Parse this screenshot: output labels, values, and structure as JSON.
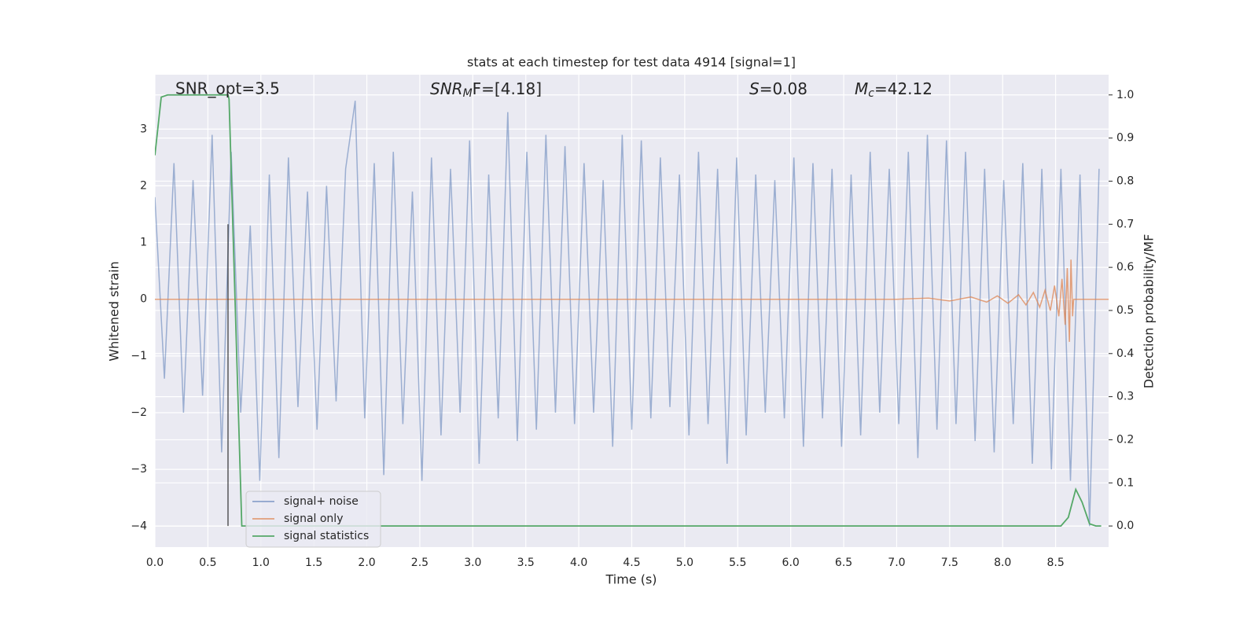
{
  "chart_data": {
    "type": "line",
    "title": "stats at each timestep for test data 4914 [signal=1]",
    "xlabel": "Time (s)",
    "ylabel": "Whitened strain",
    "y2label": "Detection probability/MF",
    "xlim": [
      0,
      9
    ],
    "ylim": [
      -4.37,
      3.96
    ],
    "y2lim": [
      -0.049,
      1.047
    ],
    "grid": true,
    "legend": "lower left",
    "background": "#eaeaf2",
    "xticks": [
      {
        "value": 0,
        "label": "0.0"
      },
      {
        "value": 0.5,
        "label": "0.5"
      },
      {
        "value": 1,
        "label": "1.0"
      },
      {
        "value": 1.5,
        "label": "1.5"
      },
      {
        "value": 2,
        "label": "2.0"
      },
      {
        "value": 2.5,
        "label": "2.5"
      },
      {
        "value": 3,
        "label": "3.0"
      },
      {
        "value": 3.5,
        "label": "3.5"
      },
      {
        "value": 4,
        "label": "4.0"
      },
      {
        "value": 4.5,
        "label": "4.5"
      },
      {
        "value": 5,
        "label": "5.0"
      },
      {
        "value": 5.5,
        "label": "5.5"
      },
      {
        "value": 6,
        "label": "6.0"
      },
      {
        "value": 6.5,
        "label": "6.5"
      },
      {
        "value": 7,
        "label": "7.0"
      },
      {
        "value": 7.5,
        "label": "7.5"
      },
      {
        "value": 8,
        "label": "8.0"
      },
      {
        "value": 8.5,
        "label": "8.5"
      }
    ],
    "yticks": [
      {
        "value": -4,
        "label": "−4"
      },
      {
        "value": -3,
        "label": "−3"
      },
      {
        "value": -2,
        "label": "−2"
      },
      {
        "value": -1,
        "label": "−1"
      },
      0,
      1,
      2,
      3
    ],
    "y2ticks": [
      {
        "value": 0,
        "label": "0.0"
      },
      {
        "value": 0.1,
        "label": "0.1"
      },
      {
        "value": 0.2,
        "label": "0.2"
      },
      {
        "value": 0.3,
        "label": "0.3"
      },
      {
        "value": 0.4,
        "label": "0.4"
      },
      {
        "value": 0.5,
        "label": "0.5"
      },
      {
        "value": 0.6,
        "label": "0.6"
      },
      {
        "value": 0.7,
        "label": "0.7"
      },
      {
        "value": 0.8,
        "label": "0.8"
      },
      {
        "value": 0.9,
        "label": "0.9"
      },
      {
        "value": 1,
        "label": "1.0"
      }
    ],
    "annotations": [
      {
        "text": "SNR_opt=3.5"
      },
      {
        "base": "SNR",
        "sub": "M",
        "rest": "F=[4.18]"
      },
      {
        "base": "S",
        "rest": "=0.08"
      },
      {
        "base": "M",
        "sub": "c",
        "rest": "=42.12"
      }
    ],
    "vline": {
      "x": 0.69,
      "ymin": 0,
      "ymax": 0.7,
      "color": "#333333"
    },
    "series": [
      {
        "name": "signal+ noise",
        "color": "#4c72b0",
        "x": [
          0,
          0.09,
          0.18,
          0.27,
          0.36,
          0.45,
          0.54,
          0.63,
          0.72,
          0.81,
          0.9,
          0.99,
          1.08,
          1.17,
          1.26,
          1.35,
          1.44,
          1.53,
          1.62,
          1.71,
          1.8,
          1.89,
          1.98,
          2.07,
          2.16,
          2.25,
          2.34,
          2.43,
          2.52,
          2.61,
          2.7,
          2.79,
          2.88,
          2.97,
          3.06,
          3.15,
          3.24,
          3.33,
          3.42,
          3.51,
          3.6,
          3.69,
          3.78,
          3.87,
          3.96,
          4.05,
          4.14,
          4.23,
          4.32,
          4.41,
          4.5,
          4.59,
          4.68,
          4.77,
          4.86,
          4.95,
          5.04,
          5.13,
          5.22,
          5.31,
          5.4,
          5.49,
          5.58,
          5.67,
          5.76,
          5.85,
          5.94,
          6.03,
          6.12,
          6.21,
          6.3,
          6.39,
          6.48,
          6.57,
          6.66,
          6.75,
          6.84,
          6.93,
          7.02,
          7.11,
          7.2,
          7.29,
          7.38,
          7.47,
          7.56,
          7.65,
          7.74,
          7.83,
          7.92,
          8.01,
          8.1,
          8.19,
          8.28,
          8.37,
          8.46,
          8.55,
          8.64,
          8.73,
          8.82,
          8.91
        ],
        "values": [
          1.8,
          -1.4,
          2.4,
          -2.0,
          2.1,
          -1.7,
          2.9,
          -2.7,
          2.6,
          -2.0,
          1.3,
          -3.2,
          2.2,
          -2.8,
          2.5,
          -1.9,
          1.9,
          -2.3,
          2.0,
          -1.8,
          2.3,
          3.5,
          -2.1,
          2.4,
          -3.1,
          2.6,
          -2.2,
          1.9,
          -3.2,
          2.5,
          -2.4,
          2.3,
          -2.0,
          2.8,
          -2.9,
          2.2,
          -2.1,
          3.3,
          -2.5,
          2.6,
          -2.3,
          2.9,
          -2.0,
          2.7,
          -2.2,
          2.4,
          -2.0,
          2.1,
          -2.6,
          2.9,
          -2.3,
          2.8,
          -2.1,
          2.5,
          -1.9,
          2.2,
          -2.4,
          2.6,
          -2.2,
          2.3,
          -2.9,
          2.5,
          -2.4,
          2.2,
          -2.0,
          2.1,
          -2.1,
          2.5,
          -2.6,
          2.4,
          -2.1,
          2.3,
          -2.6,
          2.2,
          -2.4,
          2.6,
          -2.0,
          2.3,
          -2.2,
          2.6,
          -2.8,
          2.9,
          -2.3,
          2.8,
          -2.2,
          2.6,
          -2.5,
          2.3,
          -2.7,
          2.1,
          -2.2,
          2.4,
          -2.9,
          2.3,
          -3.0,
          2.3,
          -3.2,
          2.2,
          -4.0,
          2.3
        ]
      },
      {
        "name": "signal only",
        "color": "#dd8452",
        "x": [
          0,
          7.0,
          7.3,
          7.5,
          7.7,
          7.85,
          7.95,
          8.05,
          8.15,
          8.22,
          8.29,
          8.35,
          8.4,
          8.45,
          8.49,
          8.53,
          8.56,
          8.59,
          8.61,
          8.63,
          8.645,
          8.66,
          8.67,
          9.0
        ],
        "values": [
          0,
          0,
          0.02,
          -0.03,
          0.04,
          -0.05,
          0.06,
          -0.07,
          0.08,
          -0.1,
          0.12,
          -0.14,
          0.16,
          -0.2,
          0.24,
          -0.3,
          0.36,
          -0.45,
          0.55,
          -0.75,
          0.7,
          -0.3,
          0,
          0
        ]
      },
      {
        "name": "signal statistics",
        "color": "#55a868",
        "axis": "y2",
        "x": [
          0,
          0.06,
          0.12,
          0.69,
          0.7,
          0.82,
          8.55,
          8.62,
          8.69,
          8.75,
          8.82,
          8.88,
          8.93
        ],
        "values": [
          0.86,
          0.995,
          1.0,
          1.0,
          0.99,
          0.0,
          0.0,
          0.02,
          0.085,
          0.055,
          0.005,
          0.0,
          0.0
        ]
      }
    ]
  }
}
